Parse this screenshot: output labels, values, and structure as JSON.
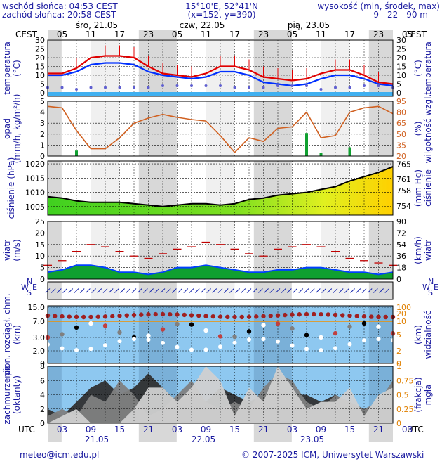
{
  "header": {
    "sunrise": "wschód słońca: 04:53 CEST",
    "sunset": "zachód słońca: 20:58 CEST",
    "coords": "15°10'E, 52°41'N",
    "grid": "(x=152, y=390)",
    "elev_title": "wysokość (min, środek, max)",
    "elev_values": "9 - 22 - 90 m"
  },
  "timezone_top": "CEST",
  "timezone_bottom": "UTC",
  "days_top": [
    "śro, 21.05",
    "czw, 22.05",
    "pią, 23.05"
  ],
  "hours_top": [
    "05",
    "11",
    "17",
    "23",
    "05",
    "11",
    "17",
    "23",
    "05",
    "11",
    "17",
    "23",
    "05"
  ],
  "hours_bottom": [
    "03",
    "09",
    "15",
    "21",
    "03",
    "09",
    "15",
    "21",
    "03",
    "09",
    "15",
    "21",
    "03"
  ],
  "dates_bottom": [
    "21.05",
    "22.05",
    "23.05"
  ],
  "footer": {
    "email": "meteo@icm.edu.pl",
    "copyright": "© 2007-2025 ICM, Uniwersytet Warszawski"
  },
  "colors": {
    "label": "#1a1aa0",
    "temp": "#e00000",
    "dew": "#0030ff",
    "chill": "#6060d0",
    "humidity": "#d06020",
    "pressure_line": "#000000",
    "wind_gust": "#c00000",
    "wind_fill": "#10a030",
    "sky": "#8ec8f0",
    "cloud_low": "#303030",
    "cloud_mid": "#808080",
    "cloud_high": "#d0d0d0"
  },
  "chart_data": [
    {
      "type": "line",
      "name": "temperature",
      "ylabel": "temperatura (°C)",
      "yticks_left": [
        0,
        5,
        10,
        15,
        20,
        25,
        30
      ],
      "yticks_right": [
        0,
        5,
        10,
        15,
        20,
        25,
        30
      ],
      "ylim": [
        -2,
        30
      ],
      "x_hours": [
        0,
        3,
        6,
        9,
        12,
        15,
        18,
        21,
        24,
        27,
        30,
        33,
        36,
        39,
        42,
        45,
        48,
        51,
        54,
        57,
        60,
        63,
        66,
        69,
        72
      ],
      "series": [
        {
          "values": [
            11,
            11,
            14,
            20,
            21,
            21,
            20,
            15,
            11,
            10,
            9,
            11,
            15,
            15,
            13,
            9,
            8,
            7,
            8,
            11,
            13,
            13,
            10,
            6,
            5
          ]
        },
        {
          "values": [
            10,
            10,
            12,
            16,
            17,
            17,
            16,
            12,
            10,
            9,
            8,
            9,
            12,
            12,
            10,
            6,
            5,
            4,
            5,
            8,
            10,
            10,
            8,
            5,
            4
          ]
        },
        {
          "values": [
            3,
            3,
            2,
            3,
            3,
            3,
            3,
            3,
            4,
            4,
            4,
            4,
            4,
            3,
            3,
            3,
            4,
            4,
            4,
            2,
            3,
            3,
            4,
            4,
            3
          ]
        }
      ]
    },
    {
      "type": "line",
      "name": "precipitation-humidity",
      "ylabel": "opad (mm/h, kg/m²/h)",
      "ylabel_right": "wilgotność wzgl. (%)",
      "yticks_left": [
        0,
        1,
        2,
        3,
        4,
        5
      ],
      "yticks_right": [
        20,
        35,
        50,
        65,
        80,
        95
      ],
      "ylim": [
        0,
        5
      ],
      "ylim_right": [
        20,
        95
      ],
      "x_hours": [
        0,
        3,
        6,
        9,
        12,
        15,
        18,
        21,
        24,
        27,
        30,
        33,
        36,
        39,
        42,
        45,
        48,
        51,
        54,
        57,
        60,
        63,
        66,
        69,
        72
      ],
      "series": [
        {
          "values": [
            88,
            86,
            55,
            30,
            30,
            45,
            65,
            72,
            77,
            73,
            70,
            68,
            48,
            25,
            45,
            40,
            58,
            60,
            80,
            45,
            48,
            80,
            86,
            88,
            78
          ]
        },
        {
          "values": [
            0,
            0,
            0.5,
            0,
            0,
            0,
            0,
            0,
            0,
            0,
            0,
            0,
            0,
            0,
            0,
            0,
            0,
            0,
            2.1,
            0.3,
            0,
            0.8,
            0,
            0,
            0
          ]
        }
      ]
    },
    {
      "type": "area",
      "name": "pressure",
      "ylabel": "ciśnienie (hPa)",
      "ylabel_right": "ciśnienie (mm Hg)",
      "yticks_left": [
        1005,
        1010,
        1015,
        1020
      ],
      "yticks_right": [
        754,
        758,
        761,
        765
      ],
      "ylim": [
        1002,
        1021
      ],
      "x_hours": [
        0,
        3,
        6,
        9,
        12,
        15,
        18,
        21,
        24,
        27,
        30,
        33,
        36,
        39,
        42,
        45,
        48,
        51,
        54,
        57,
        60,
        63,
        66,
        69,
        72
      ],
      "series": [
        {
          "values": [
            1008.5,
            1008,
            1007,
            1006.5,
            1006.5,
            1006.5,
            1006,
            1005.5,
            1005,
            1005.5,
            1006,
            1006,
            1005.5,
            1006,
            1007.5,
            1008,
            1009,
            1009.5,
            1010,
            1011,
            1012,
            1014,
            1015.5,
            1017,
            1019
          ]
        }
      ]
    },
    {
      "type": "area",
      "name": "wind",
      "ylabel": "wiatr (m/s)",
      "ylabel_right": "wiatr (km/h)",
      "yticks_left": [
        0,
        5,
        10,
        15,
        20,
        25
      ],
      "yticks_right": [
        0,
        18,
        36,
        54,
        72,
        90
      ],
      "ylim": [
        0,
        25
      ],
      "x_hours": [
        0,
        3,
        6,
        9,
        12,
        15,
        18,
        21,
        24,
        27,
        30,
        33,
        36,
        39,
        42,
        45,
        48,
        51,
        54,
        57,
        60,
        63,
        66,
        69,
        72
      ],
      "series": [
        {
          "values": [
            3,
            4,
            6,
            6,
            5,
            3,
            3,
            2,
            3,
            5,
            5,
            6,
            5,
            4,
            3,
            3,
            4,
            4,
            5,
            5,
            4,
            3,
            3,
            2,
            3
          ]
        },
        {
          "values": [
            6,
            8,
            12,
            15,
            14,
            12,
            10,
            9,
            11,
            13,
            14,
            16,
            15,
            13,
            11,
            10,
            13,
            14,
            15,
            14,
            12,
            9,
            8,
            7,
            6
          ]
        }
      ]
    },
    {
      "type": "scatter",
      "name": "wind-direction",
      "ylabel": "W S N E"
    },
    {
      "type": "line",
      "name": "cloud-visibility",
      "ylabel": "pion. rozciągł. chm. (km)",
      "ylabel_right": "widzialność (km)",
      "yticks_left": [
        0,
        2.0,
        3.0,
        7.0,
        15.0
      ],
      "yticks_right": [
        0,
        2,
        5,
        10,
        20,
        100
      ],
      "x_hours": [
        0,
        3,
        6,
        9,
        12,
        15,
        18,
        21,
        24,
        27,
        30,
        33,
        36,
        39,
        42,
        45,
        48,
        51,
        54,
        57,
        60,
        63,
        66,
        69,
        72
      ],
      "series": [
        {
          "values": [
            20,
            20,
            20,
            20,
            20,
            20,
            20,
            20,
            20,
            20,
            20,
            20,
            20,
            20,
            20,
            20,
            20,
            20,
            20,
            20,
            20,
            20,
            20,
            20,
            20
          ]
        }
      ]
    },
    {
      "type": "area",
      "name": "cloudiness-fog",
      "ylabel": "zachmurzenie (oktanty)",
      "ylabel_right": "(frakcja) mgła",
      "yticks_left": [
        0,
        2,
        4,
        6,
        8
      ],
      "yticks_right": [
        0,
        0.25,
        0.5,
        0.75,
        1
      ],
      "ylim": [
        0,
        8
      ],
      "x_hours": [
        0,
        3,
        6,
        9,
        12,
        15,
        18,
        21,
        24,
        27,
        30,
        33,
        36,
        39,
        42,
        45,
        48,
        51,
        54,
        57,
        60,
        63,
        66,
        69,
        72
      ],
      "series": [
        {
          "values": [
            0,
            1,
            2,
            0,
            0,
            0,
            2,
            5,
            5,
            3,
            5,
            8,
            6,
            1,
            5,
            3,
            8,
            5,
            2,
            3,
            3,
            5,
            1,
            4,
            5
          ]
        },
        {
          "values": [
            1,
            2,
            1,
            4,
            3,
            6,
            4,
            1,
            2,
            4,
            6,
            3,
            2,
            3,
            2,
            5,
            7,
            6,
            3,
            2,
            4,
            3,
            2,
            3,
            6
          ]
        },
        {
          "values": [
            2,
            1,
            3,
            5,
            6,
            4,
            5,
            7,
            5,
            3,
            4,
            3,
            5,
            4,
            3,
            4,
            5,
            4,
            4,
            3,
            4,
            3,
            2,
            2,
            2
          ]
        }
      ]
    }
  ]
}
